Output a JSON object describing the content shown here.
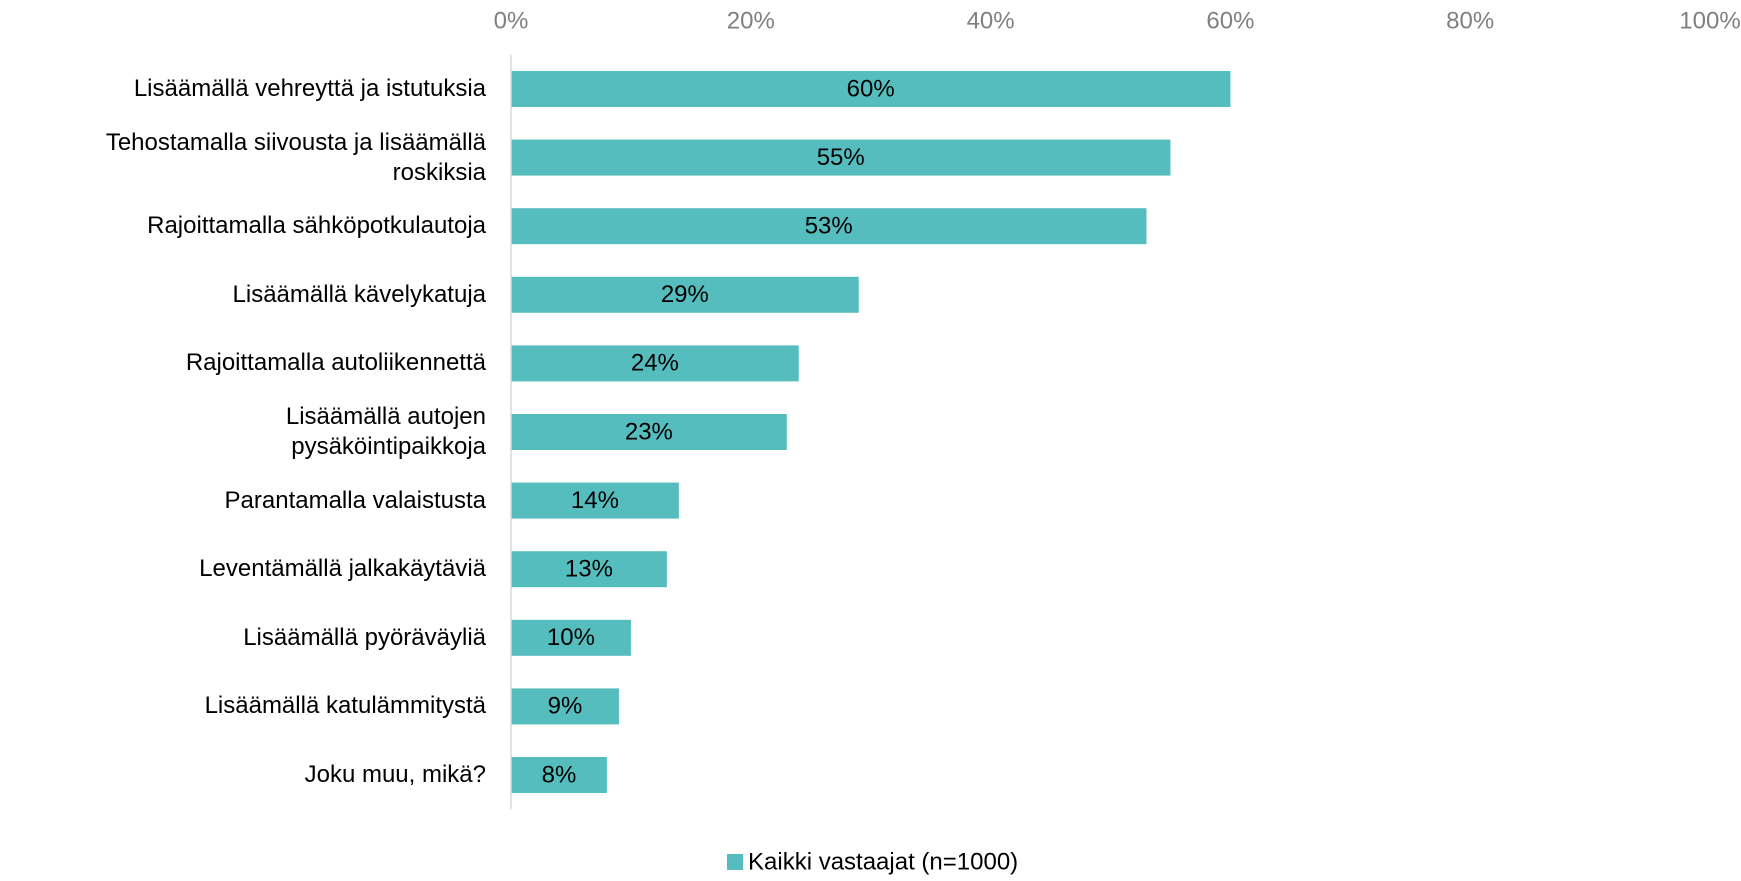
{
  "chart_data": {
    "type": "bar",
    "orientation": "horizontal",
    "categories": [
      "Lisäämällä vehreyttä ja istutuksia",
      "Tehostamalla siivousta ja lisäämällä\nroskiksia",
      "Rajoittamalla sähköpotkulautoja",
      "Lisäämällä kävelykatuja",
      "Rajoittamalla autoliikennettä",
      "Lisäämällä autojen\npysäköintipaikkoja",
      "Parantamalla valaistusta",
      "Leventämällä jalkakäytäviä",
      "Lisäämällä pyöräväyliä",
      "Lisäämällä katulämmitystä",
      "Joku muu, mikä?"
    ],
    "series": [
      {
        "name": "Kaikki vastaajat (n=1000)",
        "color": "#56bdbf",
        "values": [
          60,
          55,
          53,
          29,
          24,
          23,
          14,
          13,
          10,
          9,
          8
        ],
        "value_labels": [
          "60%",
          "55%",
          "53%",
          "29%",
          "24%",
          "23%",
          "14%",
          "13%",
          "10%",
          "9%",
          "8%"
        ]
      }
    ],
    "xlim": [
      0,
      100
    ],
    "xticks": [
      {
        "value": 0,
        "label": "0%"
      },
      {
        "value": 20,
        "label": "20%"
      },
      {
        "value": 40,
        "label": "40%"
      },
      {
        "value": 60,
        "label": "60%"
      },
      {
        "value": 80,
        "label": "80%"
      },
      {
        "value": 100,
        "label": "100%"
      }
    ],
    "legend": "bottom"
  }
}
